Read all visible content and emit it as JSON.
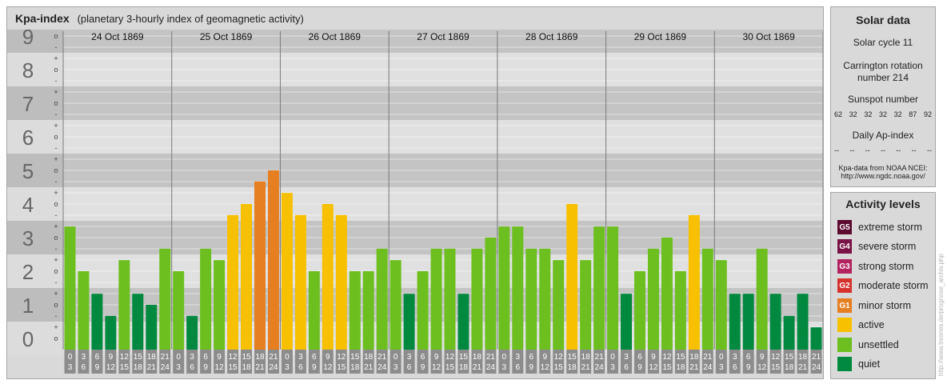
{
  "header": {
    "title": "Kpa-index",
    "subtitle": "(planetary 3-hourly index of geomagnetic activity)"
  },
  "solar": {
    "title": "Solar data",
    "solar_cycle": "Solar cycle 11",
    "carrington_line1": "Carrington rotation",
    "carrington_line2": "number 214",
    "sunspot_label": "Sunspot number",
    "sunspot_numbers": [
      "62",
      "32",
      "32",
      "32",
      "32",
      "87",
      "92"
    ],
    "ap_label": "Daily Ap-index",
    "ap_values": [
      "--",
      "--",
      "--",
      "--",
      "--",
      "--",
      "--"
    ],
    "source_line1": "Kpa-data from NOAA NCEI:",
    "source_line2": "http://www.ngdc.noaa.gov/"
  },
  "activity": {
    "title": "Activity levels",
    "levels": [
      {
        "badge": "G5",
        "label": "extreme storm",
        "color": "#5c0a2e"
      },
      {
        "badge": "G4",
        "label": "severe storm",
        "color": "#7a1446"
      },
      {
        "badge": "G3",
        "label": "strong storm",
        "color": "#b3245f"
      },
      {
        "badge": "G2",
        "label": "moderate storm",
        "color": "#d6322e"
      },
      {
        "badge": "G1",
        "label": "minor storm",
        "color": "#e67e22"
      },
      {
        "badge": "",
        "label": "active",
        "color": "#f7c000"
      },
      {
        "badge": "",
        "label": "unsettled",
        "color": "#6cbf1f"
      },
      {
        "badge": "",
        "label": "quiet",
        "color": "#00893f"
      }
    ]
  },
  "watermark": "http://www.tresnes.de/prognose_archiv.php",
  "chart_data": {
    "type": "bar",
    "y_ticks": [
      "0",
      "1",
      "2",
      "3",
      "4",
      "5",
      "6",
      "7",
      "8",
      "9"
    ],
    "sub_ticks": [
      "o",
      "+",
      "-"
    ],
    "ylim": [
      0,
      9
    ],
    "days": [
      "24 Oct 1869",
      "25 Oct 1869",
      "26 Oct 1869",
      "27 Oct 1869",
      "28 Oct 1869",
      "29 Oct 1869",
      "30 Oct 1869"
    ],
    "hour_starts": [
      "0",
      "3",
      "6",
      "9",
      "12",
      "15",
      "18",
      "21"
    ],
    "hour_ends": [
      "3",
      "6",
      "9",
      "12",
      "15",
      "18",
      "21",
      "24"
    ],
    "values": [
      3.33,
      2.0,
      1.33,
      0.67,
      2.33,
      1.33,
      1.0,
      2.67,
      2.0,
      0.67,
      2.67,
      2.33,
      3.67,
      4.0,
      4.67,
      5.0,
      4.33,
      3.67,
      2.0,
      4.0,
      3.67,
      2.0,
      2.0,
      2.67,
      2.33,
      1.33,
      2.0,
      2.67,
      2.67,
      1.33,
      2.67,
      3.0,
      3.33,
      3.33,
      2.67,
      2.67,
      2.33,
      4.0,
      2.33,
      3.33,
      3.33,
      1.33,
      2.0,
      2.67,
      3.0,
      2.0,
      3.67,
      2.67,
      2.33,
      1.33,
      1.33,
      2.67,
      1.33,
      0.67,
      1.33,
      0.33
    ],
    "colors": {
      "quiet": "#00893f",
      "unsettled": "#6cbf1f",
      "active": "#f7c000",
      "g1": "#e67e22",
      "g2": "#d6322e"
    }
  }
}
